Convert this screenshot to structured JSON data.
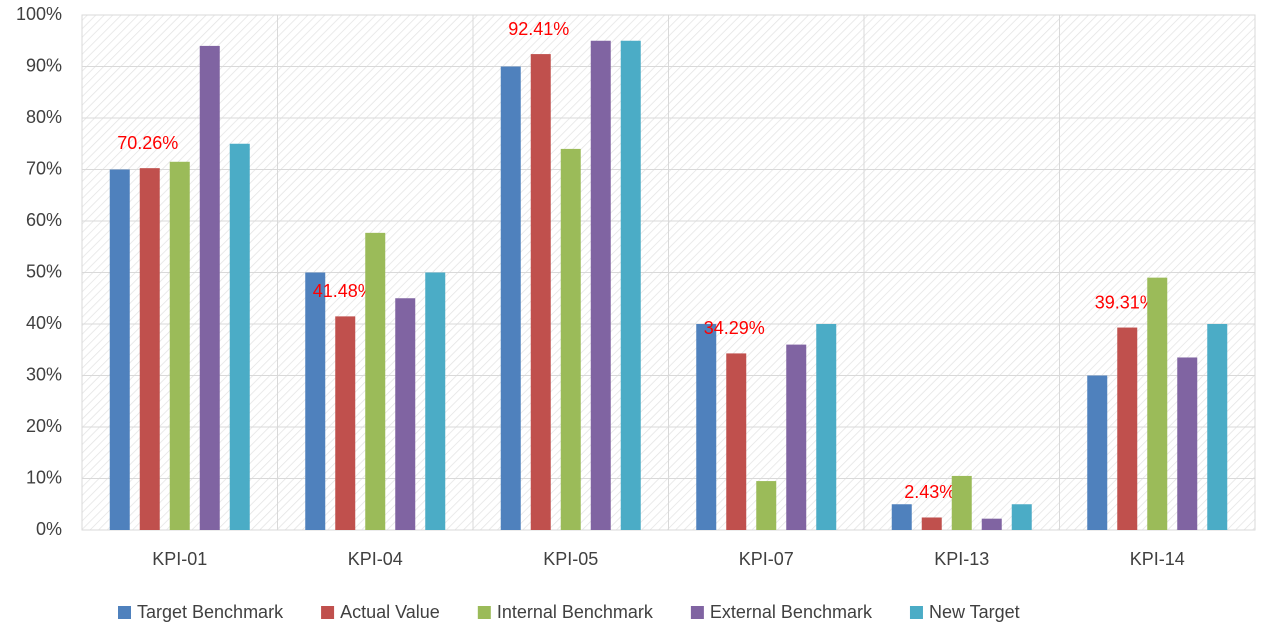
{
  "chart_data": {
    "type": "bar",
    "categories": [
      "KPI-01",
      "KPI-04",
      "KPI-05",
      "KPI-07",
      "KPI-13",
      "KPI-14"
    ],
    "series": [
      {
        "name": "Target Benchmark",
        "color": "#4f81bd",
        "values": [
          70,
          50,
          90,
          40,
          5,
          30
        ]
      },
      {
        "name": "Actual Value",
        "color": "#c0504d",
        "values": [
          70.26,
          41.48,
          92.41,
          34.29,
          2.43,
          39.31
        ],
        "value_labels": [
          "70.26%",
          "41.48%",
          "92.41%",
          "34.29%",
          "2.43%",
          "39.31%"
        ],
        "label_color": "#ff0000"
      },
      {
        "name": "Internal Benchmark",
        "color": "#9bbb59",
        "values": [
          71.5,
          57.7,
          74,
          9.5,
          10.5,
          49
        ]
      },
      {
        "name": "External Benchmark",
        "color": "#8064a2",
        "values": [
          94,
          45,
          95,
          36,
          2.2,
          33.5
        ]
      },
      {
        "name": "New Target",
        "color": "#4bacc6",
        "values": [
          75,
          50,
          95,
          40,
          5,
          40
        ]
      }
    ],
    "ylim": [
      0,
      100
    ],
    "yticks": [
      {
        "value": 0,
        "label": "0%"
      },
      {
        "value": 10,
        "label": "10%"
      },
      {
        "value": 20,
        "label": "20%"
      },
      {
        "value": 30,
        "label": "30%"
      },
      {
        "value": 40,
        "label": "40%"
      },
      {
        "value": 50,
        "label": "50%"
      },
      {
        "value": 60,
        "label": "60%"
      },
      {
        "value": 70,
        "label": "70%"
      },
      {
        "value": 80,
        "label": "80%"
      },
      {
        "value": 90,
        "label": "90%"
      },
      {
        "value": 100,
        "label": "100%"
      }
    ],
    "grid": true,
    "legend": "bottom"
  }
}
